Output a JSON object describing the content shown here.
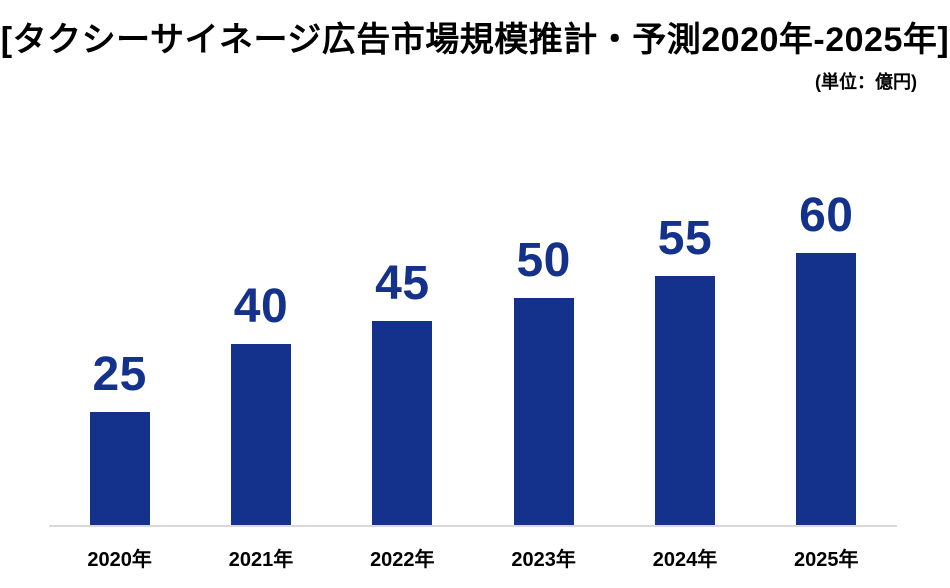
{
  "header": {
    "title": "[タクシーサイネージ広告市場規模推計・予測2020年-2025年]",
    "unit_note": "(単位：億円)"
  },
  "chart_data": {
    "type": "bar",
    "title": "タクシーサイネージ広告市場規模推計・予測2020年-2025年",
    "unit": "億円",
    "categories": [
      "2020年",
      "2021年",
      "2022年",
      "2023年",
      "2024年",
      "2025年"
    ],
    "values": [
      25,
      40,
      45,
      50,
      55,
      60
    ],
    "data_labels": true,
    "y_axis_visible": false,
    "grid": false,
    "legend": false,
    "ylim": [
      0,
      65
    ],
    "bar_color": "#14328B",
    "value_label_color": "#14328B",
    "axis_line_color": "#D9D9D9",
    "text_color": "#000000"
  }
}
